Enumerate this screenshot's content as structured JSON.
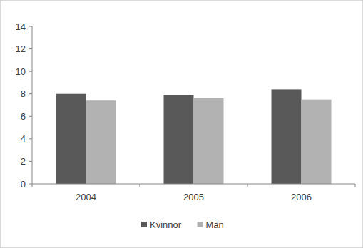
{
  "chart_data": {
    "type": "bar",
    "categories": [
      "2004",
      "2005",
      "2006"
    ],
    "series": [
      {
        "name": "Kvinnor",
        "color": "#595959",
        "values": [
          8.0,
          7.9,
          8.4
        ]
      },
      {
        "name": "Män",
        "color": "#b2b2b2",
        "values": [
          7.4,
          7.6,
          7.5
        ]
      }
    ],
    "ylim": [
      0,
      14
    ],
    "yticks": [
      0,
      2,
      4,
      6,
      8,
      10,
      12,
      14
    ],
    "grid": false,
    "legend": "bottom"
  }
}
